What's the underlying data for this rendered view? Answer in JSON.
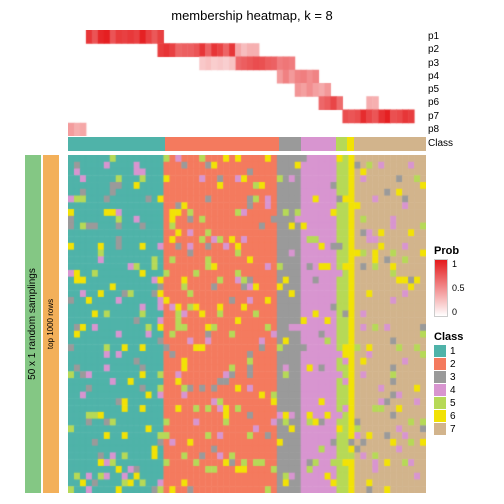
{
  "title": "membership heatmap, k = 8",
  "membership": {
    "rows": [
      "p1",
      "p2",
      "p3",
      "p4",
      "p5",
      "p6",
      "p7",
      "p8"
    ],
    "class_label": "Class",
    "n_cols": 60,
    "blocks": [
      {
        "row": 0,
        "start": 3,
        "end": 16,
        "intensity": 1.0
      },
      {
        "row": 1,
        "start": 15,
        "end": 28,
        "intensity": 0.9
      },
      {
        "row": 1,
        "start": 28,
        "end": 32,
        "intensity": 0.4
      },
      {
        "row": 2,
        "start": 28,
        "end": 38,
        "intensity": 0.8
      },
      {
        "row": 2,
        "start": 22,
        "end": 28,
        "intensity": 0.3
      },
      {
        "row": 3,
        "start": 35,
        "end": 42,
        "intensity": 0.6
      },
      {
        "row": 4,
        "start": 38,
        "end": 44,
        "intensity": 0.5
      },
      {
        "row": 5,
        "start": 42,
        "end": 46,
        "intensity": 0.9
      },
      {
        "row": 5,
        "start": 50,
        "end": 52,
        "intensity": 0.4
      },
      {
        "row": 6,
        "start": 46,
        "end": 58,
        "intensity": 1.0
      },
      {
        "row": 7,
        "start": 0,
        "end": 3,
        "intensity": 0.5
      }
    ]
  },
  "class_bar": {
    "segments": [
      {
        "class": 1,
        "width": 0.27
      },
      {
        "class": 2,
        "width": 0.32
      },
      {
        "class": 3,
        "width": 0.06
      },
      {
        "class": 4,
        "width": 0.1
      },
      {
        "class": 5,
        "width": 0.03
      },
      {
        "class": 6,
        "width": 0.02
      },
      {
        "class": 7,
        "width": 0.2
      }
    ]
  },
  "class_colors": {
    "1": "#4fb3a9",
    "2": "#f47a5e",
    "3": "#9a9a9a",
    "4": "#d895d0",
    "5": "#b6d957",
    "6": "#f2e205",
    "7": "#d2b48c"
  },
  "sidebar": {
    "outer_label": "50 x 1 random samplings",
    "outer_color": "#84c784",
    "inner_label": "top 1000 rows",
    "inner_color": "#f3b05a"
  },
  "sampling": {
    "rows": 50,
    "cols": 60,
    "noise_classes": [
      3,
      4,
      5,
      6
    ],
    "noise_density": 0.18
  },
  "legend": {
    "prob_title": "Prob",
    "prob_ticks": [
      "1",
      "0.5",
      "0"
    ],
    "class_title": "Class",
    "classes": [
      "1",
      "2",
      "3",
      "4",
      "5",
      "6",
      "7"
    ]
  },
  "prob_gradient": {
    "high": "#e41a1c",
    "low": "#ffffff"
  }
}
